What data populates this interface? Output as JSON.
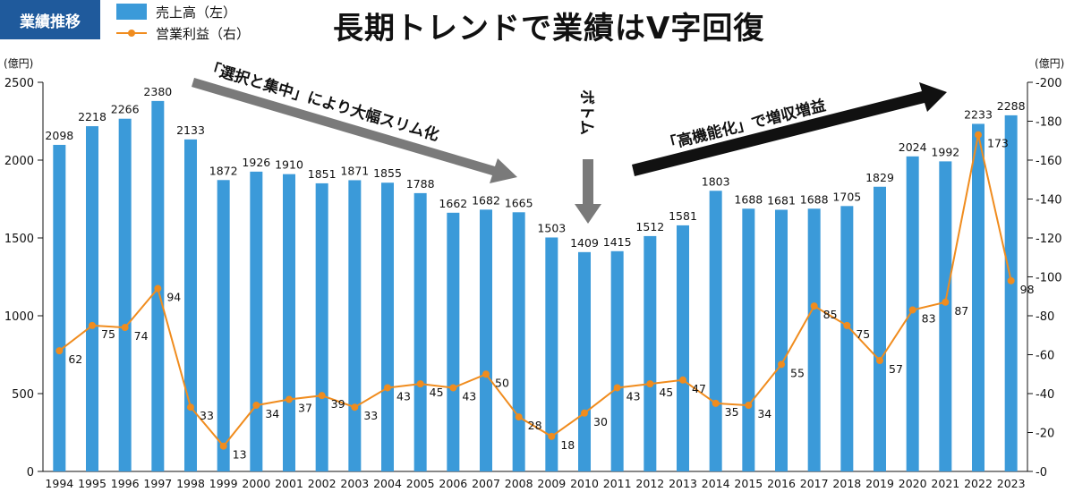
{
  "header": {
    "badge": "業績推移",
    "title": "長期トレンドで業績はV字回復",
    "legend": {
      "sales": "売上高（左）",
      "profit": "営業利益（右）"
    },
    "unit_left": "(億円)",
    "unit_right": "(億円)"
  },
  "annotations": {
    "decline": "「選択と集中」により大幅スリム化",
    "bottom": "ボトム",
    "growth": "「高機能化」で増収増益"
  },
  "colors": {
    "bar": "#3b9ad9",
    "line": "#f08c1e",
    "arrow_gray": "#7a7a7a",
    "arrow_black": "#111111"
  },
  "chart_data": {
    "type": "bar",
    "categories": [
      "1994",
      "1995",
      "1996",
      "1997",
      "1998",
      "1999",
      "2000",
      "2001",
      "2002",
      "2003",
      "2004",
      "2005",
      "2006",
      "2007",
      "2008",
      "2009",
      "2010",
      "2011",
      "2012",
      "2013",
      "2014",
      "2015",
      "2016",
      "2017",
      "2018",
      "2019",
      "2020",
      "2021",
      "2022",
      "2023"
    ],
    "series": [
      {
        "name": "売上高（左）",
        "type": "bar",
        "axis": "left",
        "values": [
          2098,
          2218,
          2266,
          2380,
          2133,
          1872,
          1926,
          1910,
          1851,
          1871,
          1855,
          1788,
          1662,
          1682,
          1665,
          1503,
          1409,
          1415,
          1512,
          1581,
          1803,
          1688,
          1681,
          1688,
          1705,
          1829,
          2024,
          1992,
          2233,
          2288
        ]
      },
      {
        "name": "営業利益（右）",
        "type": "line",
        "axis": "right",
        "values": [
          62,
          75,
          74,
          94,
          33,
          13,
          34,
          37,
          39,
          33,
          43,
          45,
          43,
          50,
          28,
          18,
          30,
          43,
          45,
          47,
          35,
          34,
          55,
          85,
          75,
          57,
          83,
          87,
          173,
          98
        ]
      }
    ],
    "y_left": {
      "range": [
        0,
        2500
      ],
      "ticks": [
        0,
        500,
        1000,
        1500,
        2000,
        2500
      ]
    },
    "y_right": {
      "range": [
        0,
        200
      ],
      "ticks": [
        0,
        20,
        40,
        60,
        80,
        100,
        120,
        140,
        160,
        180,
        200
      ]
    }
  }
}
